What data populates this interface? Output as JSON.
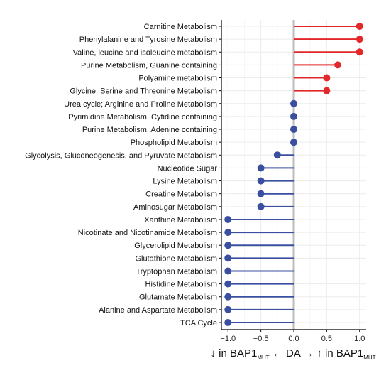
{
  "chart_data": {
    "type": "lollipop",
    "categories": [
      "Carnitine Metabolism",
      "Phenylalanine and Tyrosine Metabolism",
      "Valine, leucine and isoleucine metabolism",
      "Purine Metabolism, Guanine containing",
      "Polyamine metabolism",
      "Glycine, Serine and Threonine Metabolism",
      "Urea cycle; Arginine and Proline Metabolism",
      "Pyrimidine Metabolism, Cytidine containing",
      "Purine Metabolism, Adenine containing",
      "Phospholipid Metabolism",
      "Glycolysis, Gluconeogenesis, and Pyruvate Metabolism",
      "Nucleotide Sugar",
      "Lysine Metabolism",
      "Creatine Metabolism",
      "Aminosugar Metabolism",
      "Xanthine Metabolism",
      "Nicotinate and Nicotinamide Metabolism",
      "Glycerolipid Metabolism",
      "Glutathione Metabolism",
      "Tryptophan Metabolism",
      "Histidine Metabolism",
      "Glutamate Metabolism",
      "Alanine and Aspartate Metabolism",
      "TCA Cycle"
    ],
    "values": [
      1.0,
      1.0,
      1.0,
      0.67,
      0.5,
      0.5,
      0,
      0,
      0,
      0,
      -0.25,
      -0.5,
      -0.5,
      -0.5,
      -0.5,
      -1.0,
      -1.0,
      -1.0,
      -1.0,
      -1.0,
      -1.0,
      -1.0,
      -1.0,
      -1.0
    ],
    "xlim": [
      -1.1,
      1.1
    ],
    "xticks": [
      -1.0,
      -0.5,
      0.0,
      0.5,
      1.0
    ],
    "xtick_labels": [
      "−1.0",
      "−0.5",
      "0.0",
      "0.5",
      "1.0"
    ],
    "grid": true,
    "zero_line": true,
    "xlabel": {
      "left_arrow": "↓",
      "left_text": " in BAP1",
      "left_sub": "MUT",
      "middle": " ← DA → ",
      "right_arrow": "↑",
      "right_text": " in BAP1",
      "right_sub": "MUT"
    },
    "colors": {
      "positive": "#e3282b",
      "negative": "#3b4fa0",
      "zero_line": "#bdbdbd",
      "grid": "#ececec"
    }
  }
}
